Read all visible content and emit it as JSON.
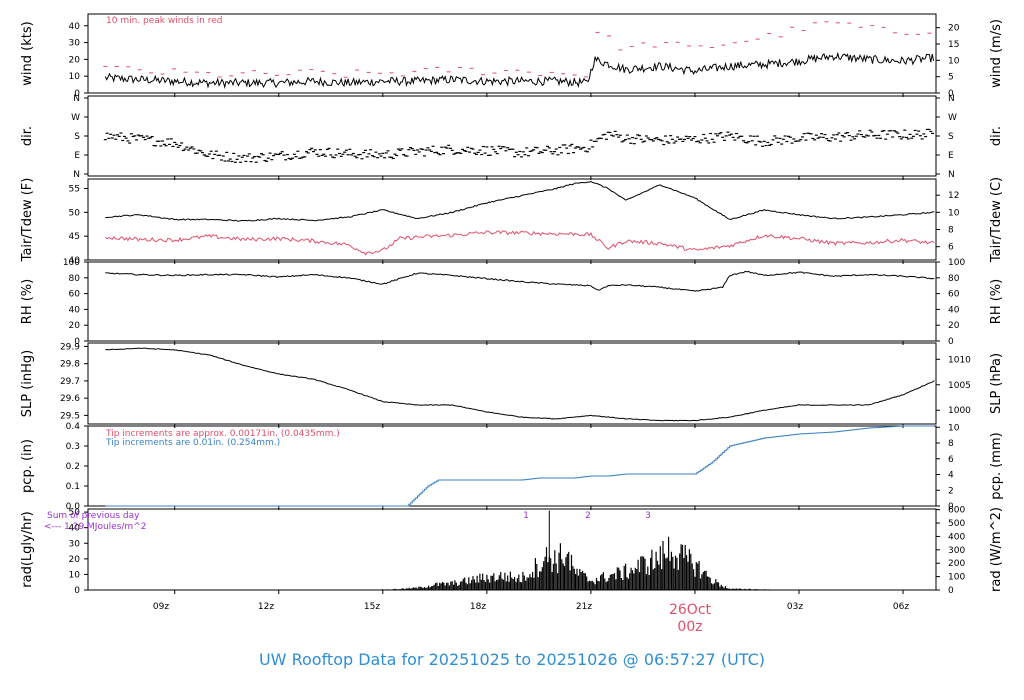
{
  "title": "UW Rooftop Data for 20251025  to  20251026 @ 06:57:27  (UTC)",
  "colors": {
    "black": "#000000",
    "red": "#e0506a",
    "blue": "#3b82c4",
    "purple": "#9b30d0",
    "title": "#2f8fd6",
    "date_label": "#e0506a"
  },
  "chart_data": [
    {
      "id": "wind",
      "type": "line",
      "ylabel_left": "wind (kts)",
      "ylabel_right": "wind (m/s)",
      "left_ticks": [
        "0",
        "10",
        "20",
        "30",
        "40"
      ],
      "right_ticks": [
        "0",
        "5",
        "10",
        "15",
        "20"
      ],
      "ylim": [
        0,
        47
      ],
      "annotations": [
        "10 min. peak winds in red"
      ],
      "series": [
        {
          "name": "wind",
          "color": "black",
          "x": [
            7,
            8,
            9,
            10,
            11,
            12,
            13,
            14,
            15,
            16,
            17,
            18,
            19,
            20,
            20.9,
            21.1,
            22,
            23,
            24,
            25,
            26,
            27,
            28,
            29,
            30,
            30.9
          ],
          "y": [
            9,
            8,
            7,
            6,
            6,
            6,
            7,
            6,
            7,
            7,
            8,
            7,
            7,
            7,
            6,
            20,
            14,
            16,
            13,
            16,
            17,
            19,
            22,
            20,
            19,
            21
          ]
        },
        {
          "name": "10 min. peak winds",
          "color": "red",
          "x": [
            7,
            8,
            9,
            10,
            11,
            12,
            13,
            14,
            15,
            16,
            17,
            18,
            19,
            20,
            20.9,
            21.1,
            22,
            23,
            24,
            25,
            26,
            27,
            28,
            29,
            30,
            30.9
          ],
          "y": [
            15,
            13,
            12,
            11,
            11,
            11,
            12,
            11,
            12,
            12,
            14,
            13,
            13,
            12,
            11,
            37,
            26,
            30,
            26,
            30,
            33,
            38,
            42,
            38,
            36,
            38
          ]
        }
      ]
    },
    {
      "id": "dir",
      "type": "scatter",
      "ylabel_left": "dir.",
      "ylabel_right": "dir.",
      "left_ticks": [
        "N",
        "E",
        "S",
        "W",
        "N"
      ],
      "right_ticks": [
        "N",
        "E",
        "S",
        "W",
        "N"
      ],
      "ylim": [
        0,
        360
      ],
      "series": [
        {
          "name": "direction",
          "color": "black",
          "x": [
            7,
            8,
            9,
            10,
            11,
            12,
            13,
            14,
            15,
            16,
            17,
            18,
            19,
            20,
            20.9,
            21.5,
            22,
            23,
            24,
            25,
            26,
            27,
            28,
            29,
            30,
            30.9
          ],
          "y": [
            180,
            165,
            150,
            95,
            80,
            90,
            110,
            100,
            95,
            110,
            120,
            115,
            105,
            115,
            130,
            190,
            170,
            160,
            165,
            180,
            155,
            170,
            175,
            185,
            185,
            190
          ]
        }
      ]
    },
    {
      "id": "temp",
      "type": "line",
      "ylabel_left": "Tair/Tdew (F)",
      "ylabel_right": "Tair/Tdew (C)",
      "left_ticks": [
        "40",
        "45",
        "50",
        "55"
      ],
      "right_ticks": [
        "6",
        "8",
        "10",
        "12"
      ],
      "ylim": [
        40,
        57
      ],
      "series": [
        {
          "name": "Tair",
          "color": "black",
          "x": [
            7,
            8,
            9,
            10,
            11,
            12,
            13,
            14,
            15,
            16,
            17,
            18,
            19,
            20,
            20.5,
            21,
            21.5,
            22,
            23,
            24,
            25,
            25.5,
            26,
            27,
            28,
            29,
            30,
            30.9
          ],
          "y": [
            49,
            49.5,
            48.5,
            48.5,
            48.2,
            48.7,
            48.3,
            49,
            50.5,
            48.7,
            50,
            52,
            53.5,
            55,
            56,
            56.5,
            55,
            52.5,
            55.8,
            53,
            48.5,
            49.5,
            50.5,
            49.5,
            48.7,
            49,
            49.5,
            50
          ]
        },
        {
          "name": "Tdew",
          "color": "red",
          "x": [
            7,
            8,
            9,
            10,
            11,
            12,
            13,
            14,
            14.5,
            15,
            15.5,
            16,
            17,
            18,
            19,
            20,
            20.5,
            21,
            21.5,
            22,
            23,
            24,
            25,
            26,
            27,
            28,
            29,
            30,
            30.9
          ],
          "y": [
            44.8,
            44.3,
            44.2,
            45,
            44.3,
            44.5,
            44,
            43.2,
            41.5,
            42,
            44.5,
            44.8,
            45.2,
            45.8,
            45.7,
            45.5,
            45.5,
            45.3,
            42.5,
            44,
            43.5,
            42,
            43,
            45.2,
            44.5,
            43.5,
            43.6,
            44.2,
            43.5
          ]
        }
      ]
    },
    {
      "id": "rh",
      "type": "line",
      "ylabel_left": "RH (%)",
      "ylabel_right": "RH (%)",
      "left_ticks": [
        "0",
        "20",
        "40",
        "60",
        "80",
        "100"
      ],
      "right_ticks": [
        "0",
        "20",
        "40",
        "60",
        "80",
        "100"
      ],
      "ylim": [
        0,
        100
      ],
      "series": [
        {
          "name": "RH",
          "color": "black",
          "x": [
            7,
            8,
            9,
            10,
            11,
            12,
            13,
            14,
            15,
            16,
            17,
            18,
            19,
            20,
            21,
            21.2,
            21.5,
            22,
            23,
            24,
            24.8,
            25,
            25.5,
            26,
            27,
            28,
            29,
            30,
            30.9
          ],
          "y": [
            86,
            84,
            83,
            84,
            84,
            81,
            84,
            80,
            72,
            86,
            83,
            79,
            75,
            72,
            70,
            64,
            70,
            71,
            68,
            63,
            68,
            83,
            88,
            83,
            87,
            82,
            84,
            82,
            79
          ]
        }
      ]
    },
    {
      "id": "slp",
      "type": "line",
      "ylabel_left": "SLP (inHg)",
      "ylabel_right": "SLP (hPa)",
      "left_ticks": [
        "29.5",
        "29.6",
        "29.7",
        "29.8",
        "29.9"
      ],
      "right_ticks": [
        "1000",
        "1005",
        "1010"
      ],
      "left_lim": [
        29.45,
        29.92
      ],
      "right_lim": [
        997.3,
        1013.2
      ],
      "series": [
        {
          "name": "SLP",
          "color": "black",
          "x": [
            7,
            8,
            9,
            10,
            11,
            12,
            13,
            14,
            15,
            16,
            17,
            18,
            19,
            20,
            21,
            22,
            23,
            24,
            25,
            26,
            27,
            28,
            29,
            30,
            30.9
          ],
          "y": [
            29.88,
            29.89,
            29.88,
            29.85,
            29.79,
            29.74,
            29.71,
            29.65,
            29.58,
            29.56,
            29.56,
            29.52,
            29.49,
            29.48,
            29.5,
            29.48,
            29.47,
            29.47,
            29.49,
            29.53,
            29.56,
            29.56,
            29.56,
            29.62,
            29.7
          ]
        }
      ]
    },
    {
      "id": "pcp",
      "type": "line",
      "ylabel_left": "pcp. (in)",
      "ylabel_right": "pcp. (mm)",
      "left_ticks": [
        "0.0",
        "0.1",
        "0.2",
        "0.3",
        "0.4"
      ],
      "right_ticks": [
        "0",
        "2",
        "4",
        "6",
        "8",
        "10"
      ],
      "ylim": [
        0,
        0.4
      ],
      "annotations": [
        "Tip increments are approx. 0.00171in. (0.0435mm.)",
        "Tip increments are 0.01in. (0.254mm.)"
      ],
      "series": [
        {
          "name": "pcp",
          "color": "blue",
          "x": [
            7,
            15.7,
            16,
            16.3,
            16.6,
            17,
            18,
            19,
            19.5,
            20,
            20.5,
            21,
            21.5,
            22,
            23,
            24,
            24.5,
            25,
            25.5,
            26,
            27,
            28,
            29,
            30,
            30.9
          ],
          "y": [
            0,
            0,
            0.05,
            0.1,
            0.13,
            0.13,
            0.13,
            0.13,
            0.14,
            0.14,
            0.14,
            0.15,
            0.15,
            0.16,
            0.16,
            0.16,
            0.22,
            0.3,
            0.32,
            0.34,
            0.36,
            0.37,
            0.39,
            0.4,
            0.4
          ]
        }
      ]
    },
    {
      "id": "rad",
      "type": "area",
      "ylabel_left": "rad(Lgly/hr)",
      "ylabel_right": "rad (W/m^2)",
      "left_ticks": [
        "0",
        "10",
        "20",
        "30",
        "40",
        "50"
      ],
      "right_ticks": [
        "0",
        "100",
        "200",
        "300",
        "400",
        "500",
        "600"
      ],
      "ylim": [
        0,
        52
      ],
      "annotations": [
        "Sum of previous day",
        "<--- 1.29 MJoules/m^2",
        "1",
        "2",
        "3"
      ],
      "series": [
        {
          "name": "radiation",
          "color": "black",
          "x": [
            14.6,
            15.5,
            16,
            16.5,
            17,
            17.5,
            18,
            18.5,
            19,
            19.5,
            19.8,
            20,
            20.3,
            20.5,
            21,
            21.5,
            22,
            22.5,
            23,
            23.3,
            23.5,
            24,
            24.5,
            25,
            25.5,
            26.5
          ],
          "y": [
            0,
            1,
            2,
            5,
            6,
            9,
            12,
            13,
            11,
            24,
            32,
            28,
            35,
            18,
            9,
            13,
            17,
            24,
            30,
            40,
            33,
            24,
            9,
            1,
            1,
            0
          ]
        }
      ]
    }
  ],
  "x_axis": {
    "labels": [
      "09z",
      "12z",
      "15z",
      "18z",
      "21z",
      "26Oct",
      "00z",
      "03z",
      "06z"
    ]
  }
}
